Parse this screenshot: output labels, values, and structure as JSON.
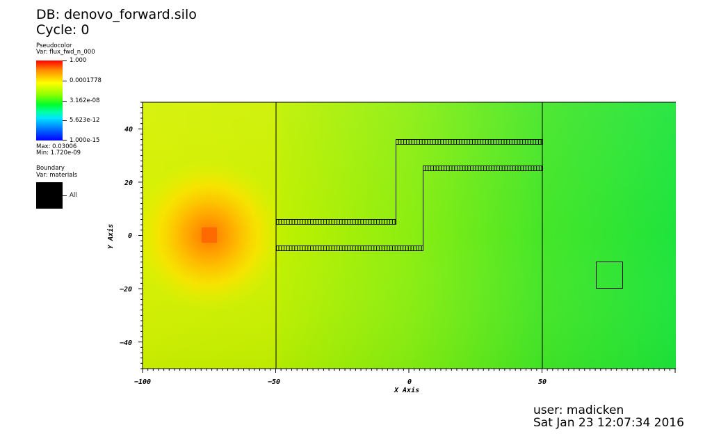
{
  "header": {
    "db_label": "DB: denovo_forward.silo",
    "cycle_label": "Cycle: 0"
  },
  "pseudocolor_legend": {
    "plot_type": "Pseudocolor",
    "var_label": "Var: flux_fwd_n_000",
    "tick_labels": [
      "1.000",
      "0.0001778",
      "3.162e-08",
      "5.623e-12",
      "1.000e-15"
    ],
    "max_label": "Max:  0.03006",
    "min_label": "Min:  1.720e-09",
    "colors": [
      "#ff0000",
      "#ffff00",
      "#00ff2a",
      "#00e5ff",
      "#0000ff"
    ]
  },
  "boundary_legend": {
    "plot_type": "Boundary",
    "var_label": "Var: materials",
    "entry_label": "All",
    "color": "#000000"
  },
  "plot": {
    "x_axis_title": "X Axis",
    "y_axis_title": "Y Axis",
    "x_tick_labels": [
      "−100",
      "−50",
      "0",
      "50"
    ],
    "y_tick_labels": [
      "40",
      "20",
      "0",
      "−20",
      "−40"
    ]
  },
  "footer": {
    "user_label": "user: madicken",
    "datetime_label": "Sat Jan 23 12:07:34 2016"
  }
}
